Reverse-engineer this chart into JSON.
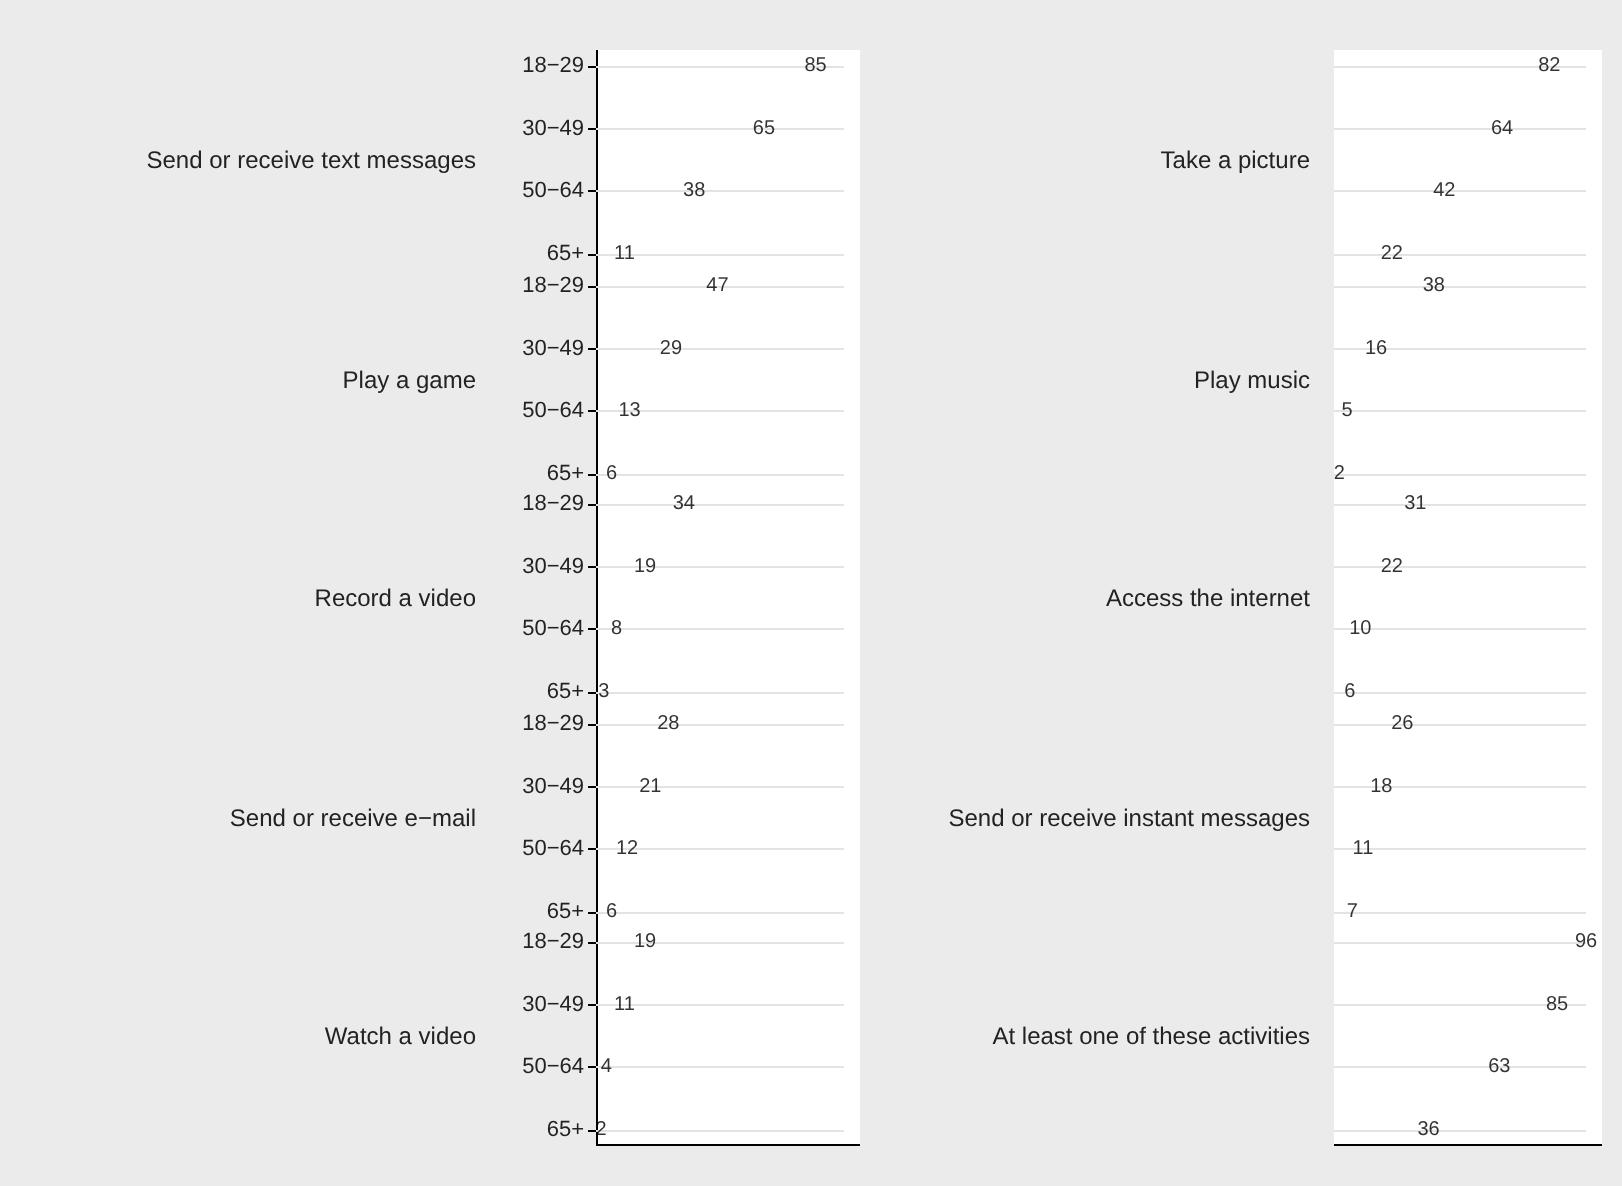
{
  "chart_data": [
    {
      "type": "other",
      "title": "Send or receive text messages",
      "categories": [
        "18−29",
        "30−49",
        "50−64",
        "65+"
      ],
      "values": [
        85,
        65,
        38,
        11
      ],
      "data_labels": true
    },
    {
      "type": "other",
      "title": "Take a picture",
      "categories": [
        null,
        null,
        null,
        null
      ],
      "values": [
        82,
        64,
        42,
        22
      ],
      "data_labels": true
    },
    {
      "type": "other",
      "title": "Play a game",
      "categories": [
        "18−29",
        "30−49",
        "50−64",
        "65+"
      ],
      "values": [
        47,
        29,
        13,
        6
      ],
      "data_labels": true
    },
    {
      "type": "other",
      "title": "Play music",
      "categories": [
        null,
        null,
        null,
        null
      ],
      "values": [
        38,
        16,
        5,
        2
      ],
      "data_labels": true
    },
    {
      "type": "other",
      "title": "Record a video",
      "categories": [
        "18−29",
        "30−49",
        "50−64",
        "65+"
      ],
      "values": [
        34,
        19,
        8,
        3
      ],
      "data_labels": true
    },
    {
      "type": "other",
      "title": "Access the internet",
      "categories": [
        null,
        null,
        null,
        null
      ],
      "values": [
        31,
        22,
        10,
        6
      ],
      "data_labels": true
    },
    {
      "type": "other",
      "title": "Send or receive e−mail",
      "categories": [
        "18−29",
        "30−49",
        "50−64",
        "65+"
      ],
      "values": [
        28,
        21,
        12,
        6
      ],
      "data_labels": true
    },
    {
      "type": "other",
      "title": "Send or receive instant messages",
      "categories": [
        null,
        null,
        null,
        null
      ],
      "values": [
        26,
        18,
        11,
        7
      ],
      "data_labels": true
    },
    {
      "type": "other",
      "title": "Watch a video",
      "categories": [
        "18−29",
        "30−49",
        "50−64",
        "65+"
      ],
      "values": [
        19,
        11,
        4,
        2
      ],
      "data_labels": true
    },
    {
      "type": "other",
      "title": "At least one of these activities",
      "categories": [
        null,
        null,
        null,
        null
      ],
      "values": [
        96,
        85,
        63,
        36
      ],
      "data_labels": true
    }
  ]
}
